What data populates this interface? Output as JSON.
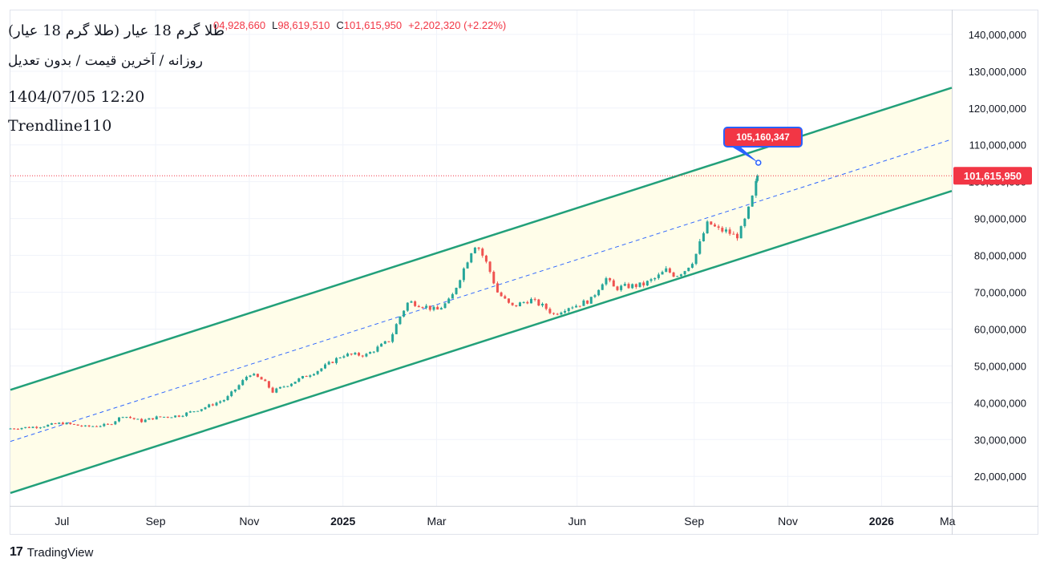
{
  "legend": {
    "symbol": "طلا گرم 18 عیار (طلا گرم 18 عیار)",
    "subtitle": "روزانه / آخرین قیمت / بدون تعدیل",
    "datetime": "1404/07/05 12:20",
    "indicator": "Trendline110",
    "ohlc": {
      "high_partial": "04,928,660",
      "low_label": "L",
      "low": "98,619,510",
      "close_label": "C",
      "close": "101,615,950",
      "change": "+2,202,320 (+2.22%)"
    }
  },
  "branding": {
    "logo_text": "TradingView",
    "logo_icon": "tradingview-logo-icon"
  },
  "colors": {
    "channel": "#22a07a",
    "channel_fill": "#fffde9",
    "midline": "#2962ff",
    "up": "#26a69a",
    "down": "#ef5350",
    "price_line": "#f23645",
    "callout_bg": "#f23645",
    "callout_border": "#2962ff"
  },
  "chart_data": {
    "type": "candlestick",
    "x_unit": "month index (0 = 2024-07-01)",
    "xlim": [
      -1.1,
      19.0
    ],
    "ylim": [
      12000000,
      146500000
    ],
    "y_ticks": [
      20000000,
      30000000,
      40000000,
      50000000,
      60000000,
      70000000,
      80000000,
      90000000,
      100000000,
      110000000,
      120000000,
      130000000,
      140000000
    ],
    "y_tick_labels": [
      "20,000,000",
      "30,000,000",
      "40,000,000",
      "50,000,000",
      "60,000,000",
      "70,000,000",
      "80,000,000",
      "90,000,000",
      "100,000,000",
      "110,000,000",
      "120,000,000",
      "130,000,000",
      "140,000,000"
    ],
    "x_ticks": [
      {
        "x": 0,
        "label": "Jul",
        "bold": false
      },
      {
        "x": 2,
        "label": "Sep",
        "bold": false
      },
      {
        "x": 4,
        "label": "Nov",
        "bold": false
      },
      {
        "x": 6,
        "label": "2025",
        "bold": true
      },
      {
        "x": 8,
        "label": "Mar",
        "bold": false
      },
      {
        "x": 11,
        "label": "Jun",
        "bold": false
      },
      {
        "x": 13.5,
        "label": "Sep",
        "bold": false
      },
      {
        "x": 15.5,
        "label": "Nov",
        "bold": false
      },
      {
        "x": 17.5,
        "label": "2026",
        "bold": true
      },
      {
        "x": 19.0,
        "label": "Ma",
        "bold": false
      }
    ],
    "price_path": [
      [
        -1.1,
        33000000
      ],
      [
        -0.5,
        33500000
      ],
      [
        0,
        34500000
      ],
      [
        0.5,
        33500000
      ],
      [
        1,
        34000000
      ],
      [
        1.3,
        36500000
      ],
      [
        1.7,
        35000000
      ],
      [
        2,
        36000000
      ],
      [
        2.5,
        36500000
      ],
      [
        3,
        38500000
      ],
      [
        3.5,
        41000000
      ],
      [
        3.8,
        45000000
      ],
      [
        4,
        48000000
      ],
      [
        4.3,
        46000000
      ],
      [
        4.5,
        43000000
      ],
      [
        5,
        46000000
      ],
      [
        5.5,
        49000000
      ],
      [
        6,
        53000000
      ],
      [
        6.5,
        53000000
      ],
      [
        7,
        57000000
      ],
      [
        7.2,
        63000000
      ],
      [
        7.4,
        67500000
      ],
      [
        7.8,
        66000000
      ],
      [
        8,
        65000000
      ],
      [
        8.3,
        68000000
      ],
      [
        8.5,
        74000000
      ],
      [
        8.7,
        80000000
      ],
      [
        8.8,
        83000000
      ],
      [
        8.9,
        82000000
      ],
      [
        9.1,
        77000000
      ],
      [
        9.3,
        70000000
      ],
      [
        9.6,
        66000000
      ],
      [
        10,
        68000000
      ],
      [
        10.3,
        66000000
      ],
      [
        10.5,
        64000000
      ],
      [
        10.8,
        66000000
      ],
      [
        11,
        66500000
      ],
      [
        11.3,
        68000000
      ],
      [
        11.6,
        74000000
      ],
      [
        11.8,
        71000000
      ],
      [
        12,
        71500000
      ],
      [
        12.4,
        72000000
      ],
      [
        12.7,
        74000000
      ],
      [
        12.9,
        76000000
      ],
      [
        13.1,
        74500000
      ],
      [
        13.3,
        76000000
      ],
      [
        13.5,
        79000000
      ],
      [
        13.7,
        86000000
      ],
      [
        13.8,
        89000000
      ],
      [
        14,
        87000000
      ],
      [
        14.2,
        86500000
      ],
      [
        14.4,
        85000000
      ],
      [
        14.5,
        87000000
      ],
      [
        14.6,
        90000000
      ],
      [
        14.7,
        94000000
      ],
      [
        14.8,
        98000000
      ],
      [
        14.85,
        101615950
      ]
    ],
    "candle_spacing_months": 0.08,
    "last_close": 101615950,
    "last_close_label": "101,615,950",
    "channel_upper": [
      [
        -1.1,
        43500000
      ],
      [
        19.0,
        125500000
      ]
    ],
    "channel_lower": [
      [
        -1.1,
        15500000
      ],
      [
        19.0,
        97500000
      ]
    ],
    "midline": [
      [
        -1.1,
        29500000
      ],
      [
        19.0,
        111500000
      ]
    ],
    "callout": {
      "x": 14.87,
      "y": 105160347,
      "label": "105,160,347"
    }
  }
}
